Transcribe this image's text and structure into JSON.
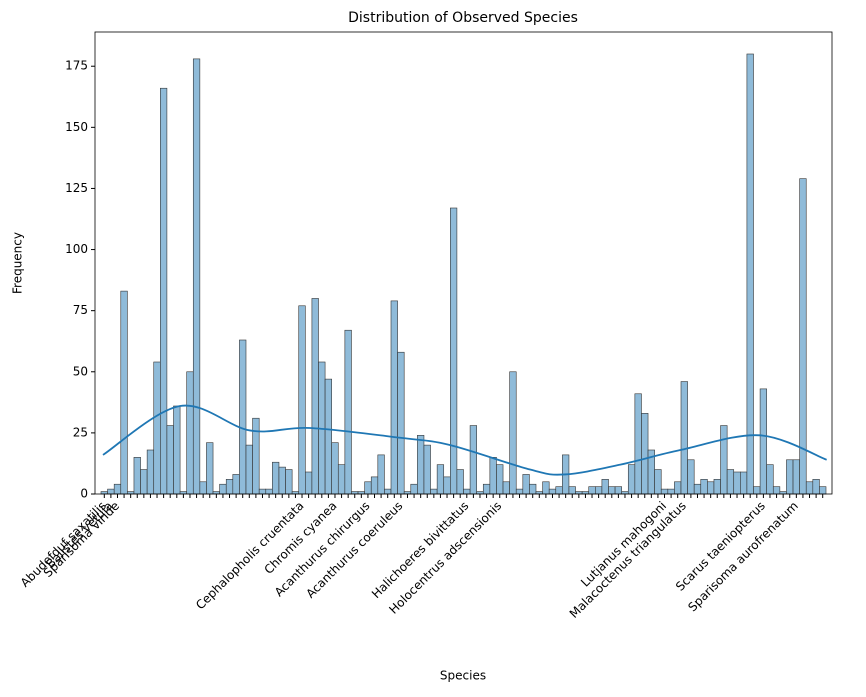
{
  "chart_data": {
    "type": "histogram",
    "title": "Distribution of Observed Species",
    "x_label": "Species",
    "y_label": "Frequency",
    "categories": [
      "Abudefduf saxatilis",
      "Balistes vetula",
      "Sparisoma viride",
      null,
      null,
      null,
      null,
      null,
      null,
      null,
      null,
      null,
      null,
      null,
      null,
      null,
      null,
      null,
      null,
      null,
      null,
      null,
      null,
      null,
      null,
      null,
      null,
      null,
      null,
      null,
      "Cephalopholis cruentata",
      null,
      null,
      null,
      null,
      "Chromis cyanea",
      null,
      null,
      null,
      null,
      "Acanthurus chirurgus",
      null,
      null,
      null,
      null,
      "Acanthurus coeruleus",
      null,
      null,
      null,
      null,
      null,
      null,
      null,
      null,
      null,
      "Halichoeres bivittatus",
      null,
      null,
      null,
      null,
      "Holocentrus adscensionis",
      null,
      null,
      null,
      null,
      null,
      null,
      null,
      null,
      null,
      null,
      null,
      null,
      null,
      null,
      null,
      null,
      null,
      null,
      null,
      null,
      null,
      null,
      null,
      null,
      "Lutjanus mahogoni",
      null,
      null,
      "Malacoctenus triangulatus",
      null,
      null,
      null,
      null,
      null,
      null,
      null,
      null,
      null,
      null,
      null,
      "Scarus taeniopterus",
      null,
      null,
      null,
      null,
      "Sparisoma aurofrenatum",
      null,
      null,
      null,
      null
    ],
    "values": [
      1,
      2,
      4,
      83,
      1,
      15,
      10,
      18,
      54,
      166,
      28,
      36,
      1,
      50,
      178,
      5,
      21,
      1,
      4,
      6,
      8,
      63,
      20,
      31,
      2,
      2,
      13,
      11,
      10,
      1,
      77,
      9,
      80,
      54,
      47,
      21,
      12,
      67,
      1,
      1,
      5,
      7,
      16,
      2,
      79,
      58,
      1,
      4,
      24,
      20,
      2,
      12,
      7,
      117,
      10,
      2,
      28,
      1,
      4,
      15,
      12,
      5,
      50,
      2,
      8,
      4,
      1,
      5,
      2,
      3,
      16,
      3,
      1,
      1,
      3,
      3,
      6,
      3,
      3,
      1,
      12,
      41,
      33,
      18,
      10,
      2,
      2,
      5,
      46,
      14,
      4,
      6,
      5,
      6,
      28,
      10,
      9,
      9,
      180,
      3,
      43,
      12,
      3,
      1,
      14,
      14,
      129,
      5,
      6,
      3
    ],
    "color": "#8fbbd9",
    "edge_color": "#333333",
    "kde": {
      "x": [
        -0.2,
        11.5,
        22.1,
        31.2,
        44.9,
        52.5,
        64.6,
        69.9,
        78.3,
        87.4,
        99.5,
        109.6
      ],
      "values": [
        16,
        36,
        26,
        27,
        23,
        20,
        10,
        8,
        12,
        18,
        24,
        14
      ],
      "color": "#1f77b4"
    },
    "ylim": [
      0,
      189
    ],
    "yticks": [
      0,
      25,
      50,
      75,
      100,
      125,
      150,
      175
    ]
  }
}
